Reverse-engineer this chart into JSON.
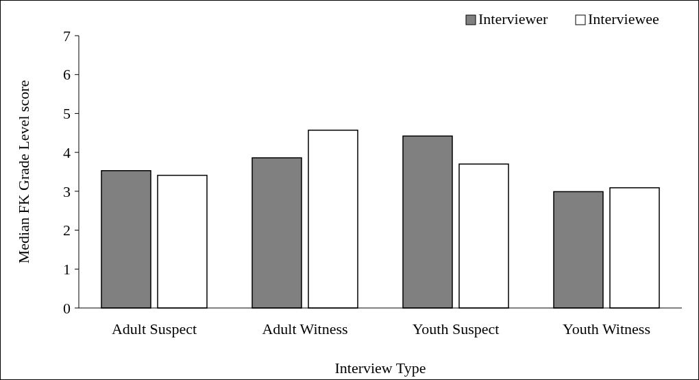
{
  "chart_data": {
    "type": "bar",
    "xlabel": "Interview Type",
    "ylabel": "Median FK Grade Level score",
    "categories": [
      "Adult Suspect",
      "Adult Witness",
      "Youth Suspect",
      "Youth Witness"
    ],
    "series": [
      {
        "name": "Interviewer",
        "color": "#808080",
        "values": [
          3.53,
          3.86,
          4.42,
          2.99
        ]
      },
      {
        "name": "Interviewee",
        "color": "#ffffff",
        "values": [
          3.41,
          4.57,
          3.7,
          3.09
        ]
      }
    ],
    "ylim": [
      0,
      7
    ],
    "yticks": [
      0,
      1,
      2,
      3,
      4,
      5,
      6,
      7
    ],
    "legend": "top right"
  }
}
